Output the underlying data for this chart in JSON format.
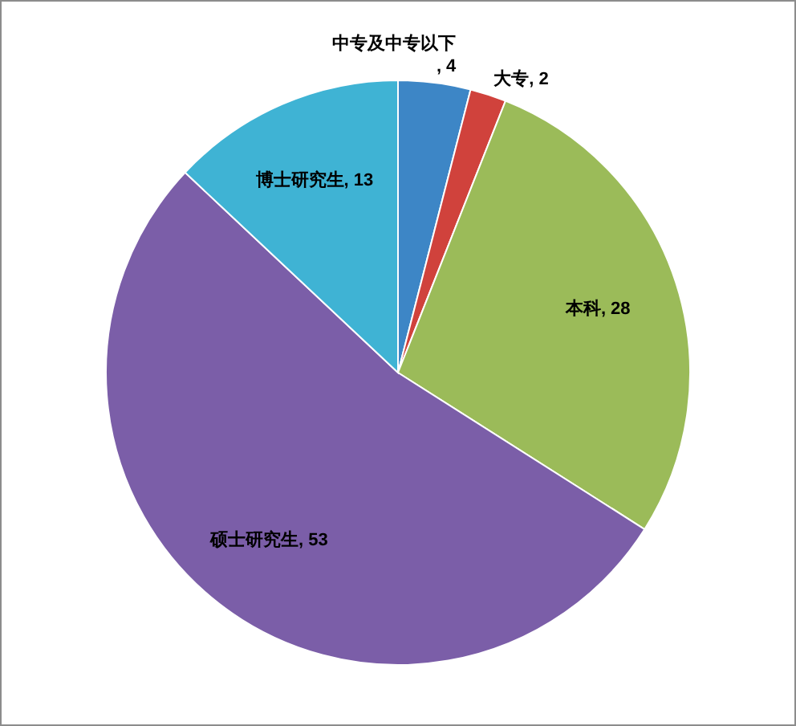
{
  "chart_data": {
    "type": "pie",
    "categories": [
      "中专及中专以下",
      "大专",
      "本科",
      "硕士研究生",
      "博士研究生"
    ],
    "values": [
      4,
      2,
      28,
      53,
      13
    ],
    "colors": [
      "#3d86c6",
      "#d0423c",
      "#9bbb59",
      "#7b5ea8",
      "#3fb3d4"
    ],
    "value_labels": [
      ", 4",
      ", 2",
      ", 28",
      ", 53",
      ", 13"
    ]
  }
}
